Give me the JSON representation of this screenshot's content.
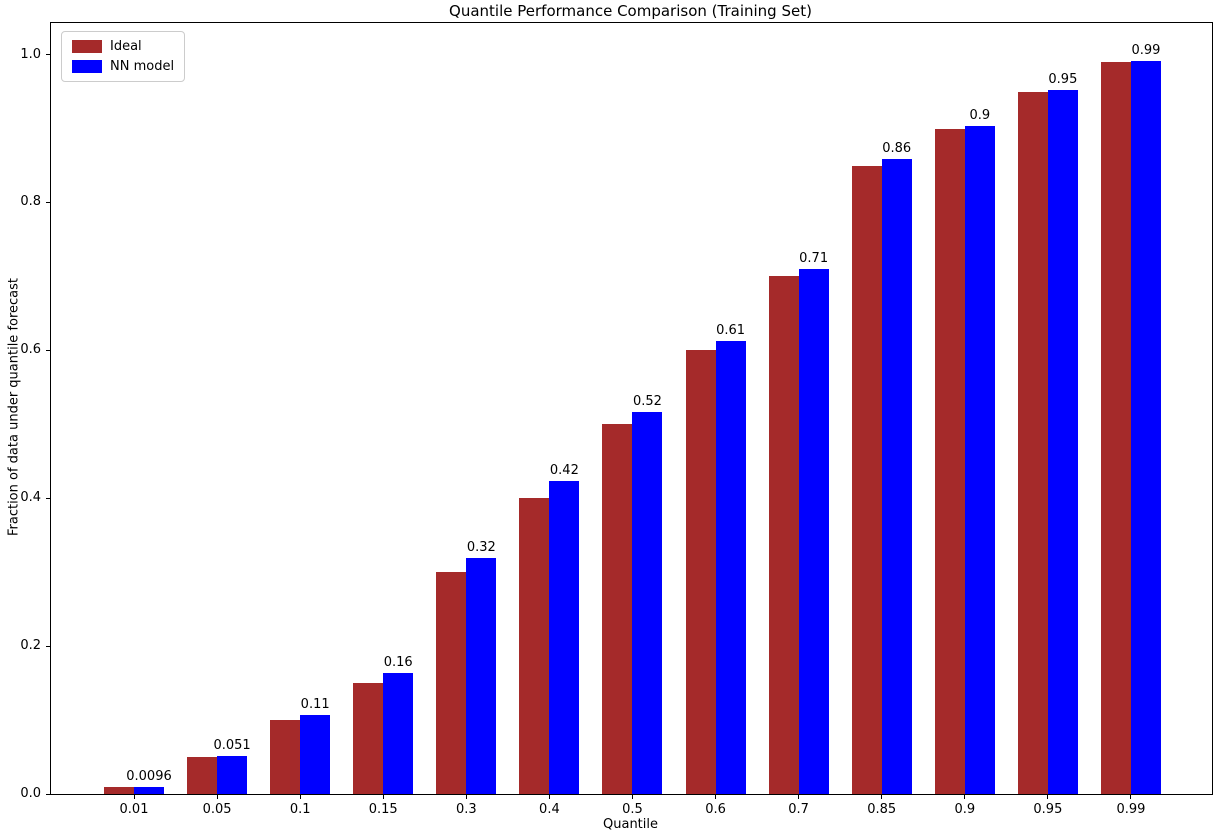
{
  "chart_data": {
    "type": "bar",
    "title": "Quantile Performance Comparison (Training Set)",
    "xlabel": "Quantile",
    "ylabel": "Fraction of data under quantile forecast",
    "categories": [
      "0.01",
      "0.05",
      "0.1",
      "0.15",
      "0.3",
      "0.4",
      "0.5",
      "0.6",
      "0.7",
      "0.85",
      "0.9",
      "0.95",
      "0.99"
    ],
    "series": [
      {
        "name": "Ideal",
        "color": "#a52a2a",
        "values": [
          0.01,
          0.05,
          0.1,
          0.15,
          0.3,
          0.4,
          0.5,
          0.6,
          0.7,
          0.85,
          0.9,
          0.95,
          0.99
        ]
      },
      {
        "name": "NN model",
        "color": "#0000ff",
        "values": [
          0.0096,
          0.051,
          0.107,
          0.163,
          0.319,
          0.423,
          0.517,
          0.612,
          0.71,
          0.859,
          0.903,
          0.952,
          0.991
        ]
      }
    ],
    "bar_labels": [
      "0.0096",
      "0.051",
      "0.11",
      "0.16",
      "0.32",
      "0.42",
      "0.52",
      "0.61",
      "0.71",
      "0.86",
      "0.9",
      "0.95",
      "0.99"
    ],
    "y_ticks": [
      0.0,
      0.2,
      0.4,
      0.6,
      0.8,
      1.0
    ],
    "y_tick_labels": [
      "0.0",
      "0.2",
      "0.4",
      "0.6",
      "0.8",
      "1.0"
    ],
    "ylim": [
      0,
      1.0427
    ],
    "grid": false,
    "legend_position": "upper left",
    "axes_color": "#000000"
  }
}
